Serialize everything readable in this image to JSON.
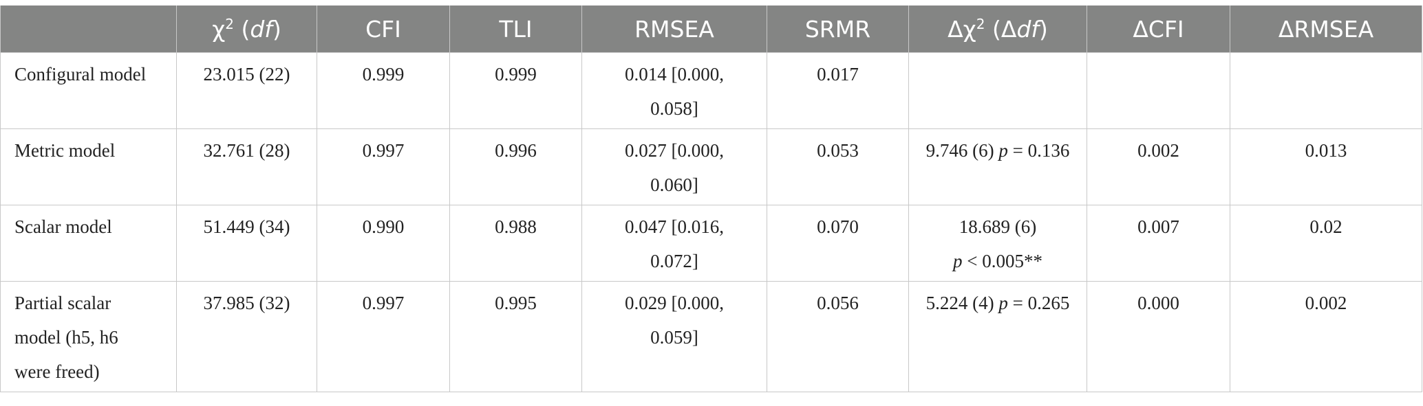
{
  "table": {
    "headers": {
      "stub": "",
      "chi": {
        "pre": "χ",
        "sup": "2",
        "open": " (",
        "it": "df",
        "close": ")"
      },
      "cfi": "CFI",
      "tli": "TLI",
      "rmsea": "RMSEA",
      "srmr": "SRMR",
      "dchi": {
        "pre": "Δχ",
        "sup": "2",
        "open": " (Δ",
        "it": "df",
        "close": ")"
      },
      "dcfi": "ΔCFI",
      "drmsea": "ΔRMSEA"
    },
    "rows": [
      {
        "model": "Configural model",
        "chi": "23.015 (22)",
        "cfi": "0.999",
        "tli": "0.999",
        "rmsea_1": "0.014 [0.000,",
        "rmsea_2": "0.058]",
        "srmr": "0.017",
        "dchi_value": "",
        "dchi_p": "",
        "dcfi": "",
        "drmsea": ""
      },
      {
        "model": "Metric model",
        "chi": "32.761 (28)",
        "cfi": "0.997",
        "tli": "0.996",
        "rmsea_1": "0.027 [0.000,",
        "rmsea_2": "0.060]",
        "srmr": "0.053",
        "dchi_value": "9.746 (6) ",
        "dchi_p_label": "p",
        "dchi_p": " = 0.136",
        "dcfi": "0.002",
        "drmsea": "0.013"
      },
      {
        "model": "Scalar model",
        "chi": "51.449 (34)",
        "cfi": "0.990",
        "tli": "0.988",
        "rmsea_1": "0.047 [0.016,",
        "rmsea_2": "0.072]",
        "srmr": "0.070",
        "dchi_value": "18.689 (6)",
        "dchi_p_label": "p",
        "dchi_p": " < 0.005**",
        "dcfi": "0.007",
        "drmsea": "0.02"
      },
      {
        "model_1": "Partial scalar",
        "model_2": "model (h5, h6",
        "model_3": "were freed)",
        "chi": "37.985 (32)",
        "cfi": "0.997",
        "tli": "0.995",
        "rmsea_1": "0.029 [0.000,",
        "rmsea_2": "0.059]",
        "srmr": "0.056",
        "dchi_value": "5.224 (4) ",
        "dchi_p_label": "p",
        "dchi_p": " = 0.265",
        "dcfi": "0.000",
        "drmsea": "0.002"
      }
    ]
  }
}
